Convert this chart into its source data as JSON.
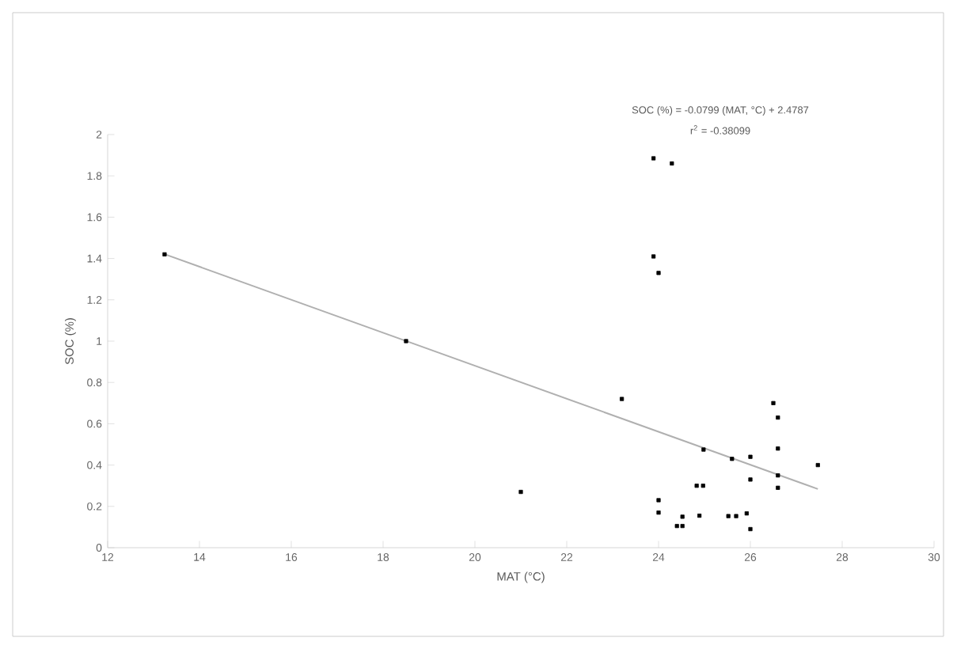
{
  "chart_data": {
    "type": "scatter",
    "xlabel": "MAT (°C)",
    "ylabel": "SOC (%)",
    "annotations": [
      "SOC (%) = -0.0799 (MAT, °C) + 2.4787",
      "r$^{2}$ = -0.38099"
    ],
    "xlim": [
      12,
      30
    ],
    "xticks": [
      12,
      14,
      16,
      18,
      20,
      22,
      24,
      26,
      28,
      30
    ],
    "ylim": [
      0,
      2
    ],
    "yticks": [
      0,
      0.2,
      0.4,
      0.6,
      0.8,
      1,
      1.2,
      1.4,
      1.6,
      1.8,
      2
    ],
    "grid": false,
    "marker": "square",
    "series": [
      {
        "color": "#000000",
        "x": [
          13.24,
          18.5,
          23.89,
          24.29,
          23.89,
          24.0,
          23.2,
          21.0,
          26.5,
          26.6,
          26.6,
          27.47,
          26.6,
          26.6,
          24.98,
          26.0,
          26.0,
          25.6,
          24.83,
          24.97,
          24.0,
          24.0,
          24.52,
          24.4,
          24.52,
          24.89,
          25.52,
          25.69,
          25.92,
          26.0
        ],
        "values": [
          1.42,
          1.0,
          1.885,
          1.86,
          1.41,
          1.33,
          0.72,
          0.27,
          0.7,
          0.63,
          0.48,
          0.4,
          0.35,
          0.29,
          0.475,
          0.44,
          0.33,
          0.43,
          0.3,
          0.3,
          0.23,
          0.17,
          0.15,
          0.105,
          0.105,
          0.155,
          0.153,
          0.153,
          0.166,
          0.09
        ]
      },
      {
        "type": "line",
        "color": "#b0b0b0",
        "x": [
          13.24,
          27.47
        ],
        "values": [
          1.421,
          0.284
        ],
        "marker": "none"
      }
    ]
  }
}
